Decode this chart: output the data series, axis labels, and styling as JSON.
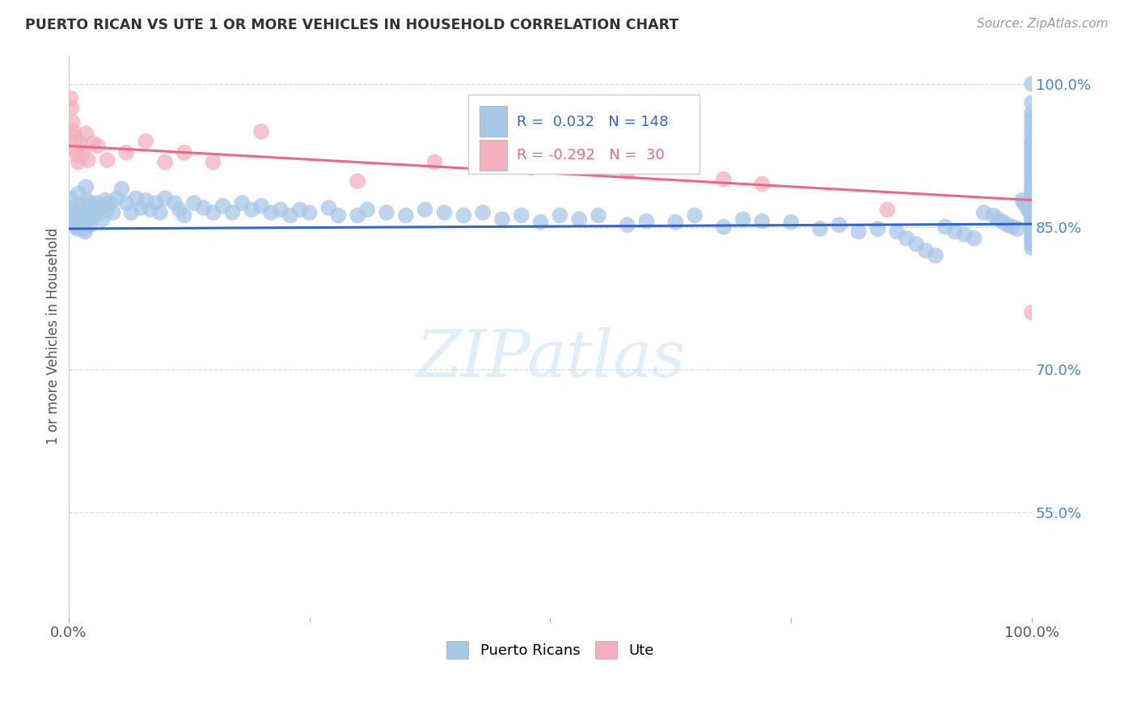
{
  "title": "PUERTO RICAN VS UTE 1 OR MORE VEHICLES IN HOUSEHOLD CORRELATION CHART",
  "source": "Source: ZipAtlas.com",
  "ylabel": "1 or more Vehicles in Household",
  "legend_labels": [
    "Puerto Ricans",
    "Ute"
  ],
  "r_blue": 0.032,
  "n_blue": 148,
  "r_pink": -0.292,
  "n_pink": 30,
  "blue_color": "#a8c8e8",
  "pink_color": "#f4b0c0",
  "blue_line_color": "#3366cc",
  "pink_line_color": "#ee6688",
  "watermark": "ZIPatlas",
  "xmin": 0.0,
  "xmax": 1.0,
  "ymin": 0.44,
  "ymax": 1.03,
  "ytick_vals": [
    0.55,
    0.7,
    0.85,
    1.0
  ],
  "ytick_labels": [
    "55.0%",
    "70.0%",
    "85.0%",
    "100.0%"
  ],
  "blue_line_y0": 0.848,
  "blue_line_y1": 0.853,
  "pink_line_y0": 0.935,
  "pink_line_y1": 0.878,
  "blue_x": [
    0.002,
    0.003,
    0.004,
    0.005,
    0.006,
    0.007,
    0.008,
    0.009,
    0.01,
    0.011,
    0.012,
    0.013,
    0.014,
    0.015,
    0.016,
    0.017,
    0.018,
    0.019,
    0.02,
    0.021,
    0.022,
    0.023,
    0.025,
    0.027,
    0.03,
    0.032,
    0.035,
    0.038,
    0.04,
    0.043,
    0.046,
    0.05,
    0.055,
    0.06,
    0.065,
    0.07,
    0.075,
    0.08,
    0.085,
    0.09,
    0.095,
    0.1,
    0.11,
    0.115,
    0.12,
    0.13,
    0.14,
    0.15,
    0.16,
    0.17,
    0.18,
    0.19,
    0.2,
    0.21,
    0.22,
    0.23,
    0.24,
    0.25,
    0.27,
    0.28,
    0.3,
    0.31,
    0.33,
    0.35,
    0.37,
    0.39,
    0.41,
    0.43,
    0.45,
    0.47,
    0.49,
    0.51,
    0.53,
    0.55,
    0.58,
    0.6,
    0.63,
    0.65,
    0.68,
    0.7,
    0.72,
    0.75,
    0.78,
    0.8,
    0.82,
    0.84,
    0.86,
    0.87,
    0.88,
    0.89,
    0.9,
    0.91,
    0.92,
    0.93,
    0.94,
    0.95,
    0.96,
    0.965,
    0.97,
    0.975,
    0.98,
    0.985,
    0.99,
    0.992,
    0.994,
    0.996,
    0.998,
    1.0,
    1.0,
    1.0,
    1.0,
    1.0,
    1.0,
    1.0,
    1.0,
    1.0,
    1.0,
    1.0,
    1.0,
    1.0,
    1.0,
    1.0,
    1.0,
    1.0,
    1.0,
    1.0,
    1.0,
    1.0,
    1.0,
    1.0,
    1.0,
    1.0,
    1.0,
    1.0,
    1.0,
    1.0,
    1.0,
    1.0,
    1.0,
    1.0,
    1.0,
    1.0,
    1.0,
    1.0,
    1.0,
    1.0,
    1.0,
    1.0
  ],
  "blue_y": [
    0.88,
    0.87,
    0.865,
    0.862,
    0.858,
    0.855,
    0.85,
    0.848,
    0.885,
    0.872,
    0.868,
    0.862,
    0.856,
    0.852,
    0.848,
    0.845,
    0.892,
    0.878,
    0.868,
    0.858,
    0.852,
    0.875,
    0.868,
    0.862,
    0.875,
    0.865,
    0.858,
    0.878,
    0.868,
    0.875,
    0.865,
    0.88,
    0.89,
    0.875,
    0.865,
    0.88,
    0.87,
    0.878,
    0.868,
    0.875,
    0.865,
    0.88,
    0.875,
    0.868,
    0.862,
    0.875,
    0.87,
    0.865,
    0.872,
    0.865,
    0.875,
    0.868,
    0.872,
    0.865,
    0.868,
    0.862,
    0.868,
    0.865,
    0.87,
    0.862,
    0.862,
    0.868,
    0.865,
    0.862,
    0.868,
    0.865,
    0.862,
    0.865,
    0.858,
    0.862,
    0.855,
    0.862,
    0.858,
    0.862,
    0.852,
    0.856,
    0.855,
    0.862,
    0.85,
    0.858,
    0.856,
    0.855,
    0.848,
    0.852,
    0.845,
    0.848,
    0.845,
    0.838,
    0.832,
    0.825,
    0.82,
    0.85,
    0.845,
    0.842,
    0.838,
    0.865,
    0.862,
    0.858,
    0.855,
    0.852,
    0.85,
    0.848,
    0.878,
    0.875,
    0.872,
    0.868,
    0.865,
    1.0,
    0.98,
    0.97,
    0.965,
    0.96,
    0.955,
    0.95,
    0.945,
    0.94,
    0.938,
    0.935,
    0.932,
    0.928,
    0.924,
    0.92,
    0.916,
    0.912,
    0.908,
    0.904,
    0.9,
    0.895,
    0.892,
    0.888,
    0.885,
    0.882,
    0.878,
    0.875,
    0.872,
    0.868,
    0.865,
    0.862,
    0.858,
    0.855,
    0.852,
    0.848,
    0.845,
    0.842,
    0.838,
    0.835,
    0.832,
    0.828
  ],
  "pink_x": [
    0.002,
    0.003,
    0.004,
    0.005,
    0.006,
    0.007,
    0.008,
    0.009,
    0.01,
    0.012,
    0.015,
    0.018,
    0.02,
    0.025,
    0.03,
    0.04,
    0.06,
    0.08,
    0.1,
    0.12,
    0.15,
    0.2,
    0.3,
    0.38,
    0.48,
    0.58,
    0.68,
    0.72,
    0.85,
    1.0
  ],
  "pink_y": [
    0.985,
    0.975,
    0.96,
    0.95,
    0.945,
    0.938,
    0.93,
    0.925,
    0.918,
    0.938,
    0.928,
    0.948,
    0.92,
    0.938,
    0.935,
    0.92,
    0.928,
    0.94,
    0.918,
    0.928,
    0.918,
    0.95,
    0.898,
    0.918,
    0.912,
    0.908,
    0.9,
    0.895,
    0.868,
    0.76
  ]
}
